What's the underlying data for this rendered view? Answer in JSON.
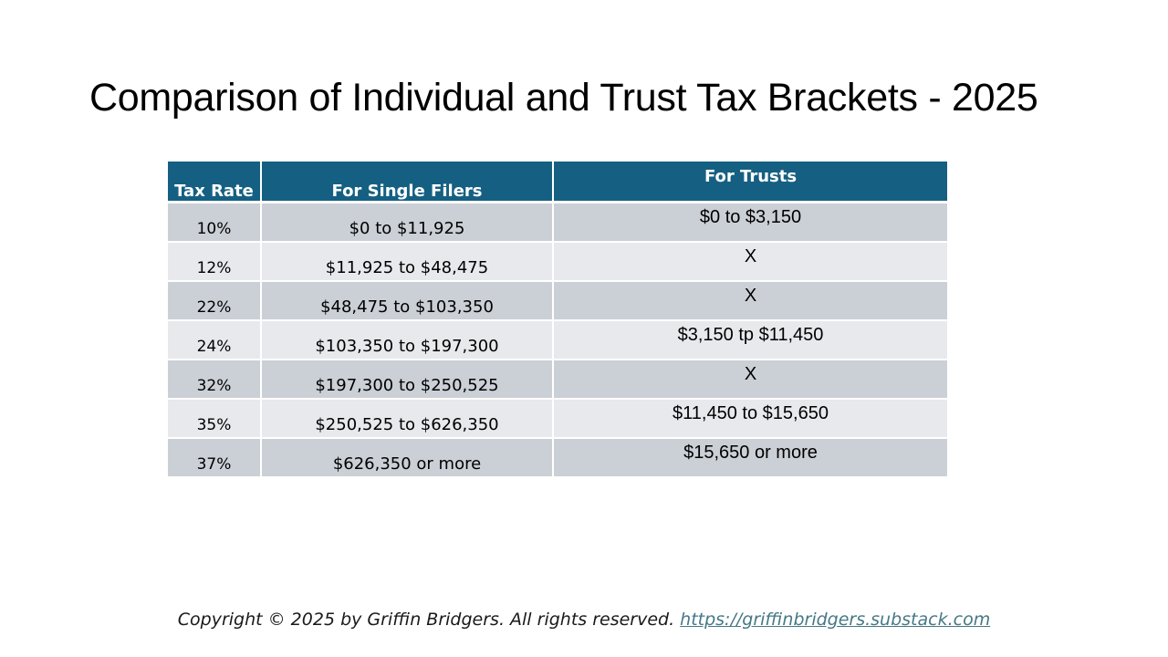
{
  "slide": {
    "title": "Comparison of Individual and Trust Tax Brackets - 2025"
  },
  "table": {
    "headers": [
      "Tax Rate",
      "For Single Filers",
      "For Trusts"
    ],
    "rows": [
      {
        "rate": "10%",
        "single": "$0 to $11,925",
        "trust": "$0 to $3,150"
      },
      {
        "rate": "12%",
        "single": "$11,925 to $48,475",
        "trust": "X"
      },
      {
        "rate": "22%",
        "single": "$48,475 to $103,350",
        "trust": "X"
      },
      {
        "rate": "24%",
        "single": "$103,350 to $197,300",
        "trust": "$3,150 tp $11,450"
      },
      {
        "rate": "32%",
        "single": "$197,300 to $250,525",
        "trust": "X"
      },
      {
        "rate": "35%",
        "single": "$250,525 to $626,350",
        "trust": "$11,450 to $15,650"
      },
      {
        "rate": "37%",
        "single": "$626,350 or more",
        "trust": "$15,650 or more"
      }
    ]
  },
  "footer": {
    "copyright": "Copyright © 2025 by Griffin Bridgers.  All rights reserved.",
    "link_text": "https://griffinbridgers.substack.com"
  },
  "colors": {
    "header_bg": "#156082",
    "row_dark": "#cbcfd6",
    "row_light": "#e7e9ec",
    "link": "#467886"
  }
}
